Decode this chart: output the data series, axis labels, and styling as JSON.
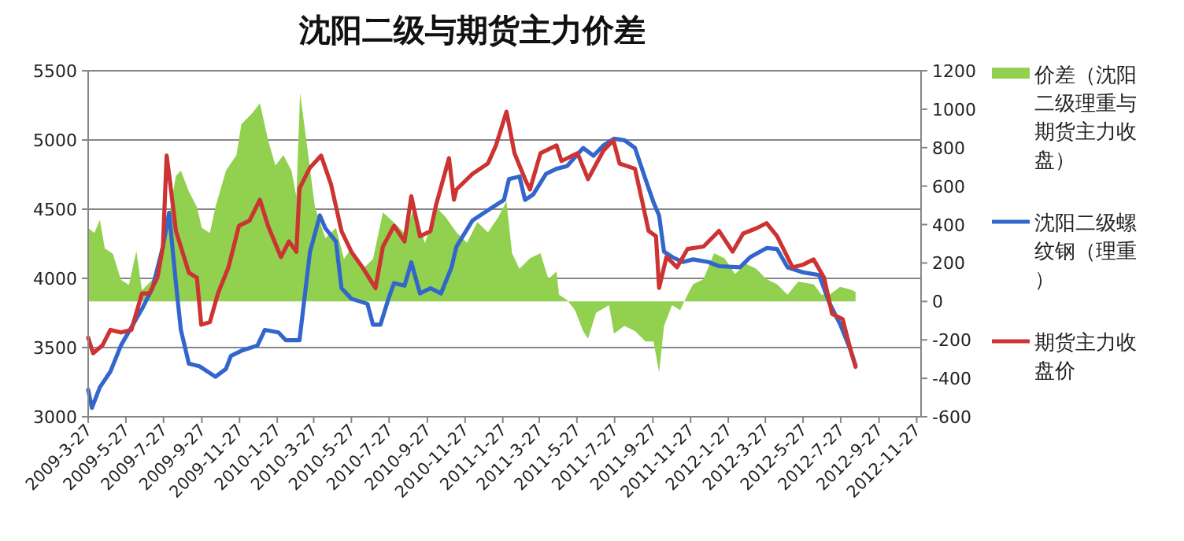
{
  "chart_data": {
    "type": "line",
    "title": "沈阳二级与期货主力价差",
    "legend": "right",
    "grid": "y",
    "xlim": [
      "2009-03-27",
      "2012-12-04"
    ],
    "xticks": [
      {
        "value": "2009-03-27",
        "label": "2009-3-27"
      },
      {
        "value": "2009-05-27",
        "label": "2009-5-27"
      },
      {
        "value": "2009-07-27",
        "label": "2009-7-27"
      },
      {
        "value": "2009-09-27",
        "label": "2009-9-27"
      },
      {
        "value": "2009-11-27",
        "label": "2009-11-27"
      },
      {
        "value": "2010-01-27",
        "label": "2010-1-27"
      },
      {
        "value": "2010-03-27",
        "label": "2010-3-27"
      },
      {
        "value": "2010-05-27",
        "label": "2010-5-27"
      },
      {
        "value": "2010-07-27",
        "label": "2010-7-27"
      },
      {
        "value": "2010-09-27",
        "label": "2010-9-27"
      },
      {
        "value": "2010-11-27",
        "label": "2010-11-27"
      },
      {
        "value": "2011-01-27",
        "label": "2011-1-27"
      },
      {
        "value": "2011-03-27",
        "label": "2011-3-27"
      },
      {
        "value": "2011-05-27",
        "label": "2011-5-27"
      },
      {
        "value": "2011-07-27",
        "label": "2011-7-27"
      },
      {
        "value": "2011-09-27",
        "label": "2011-9-27"
      },
      {
        "value": "2011-11-27",
        "label": "2011-11-27"
      },
      {
        "value": "2012-01-27",
        "label": "2012-1-27"
      },
      {
        "value": "2012-03-27",
        "label": "2012-3-27"
      },
      {
        "value": "2012-05-27",
        "label": "2012-5-27"
      },
      {
        "value": "2012-07-27",
        "label": "2012-7-27"
      },
      {
        "value": "2012-09-27",
        "label": "2012-9-27"
      },
      {
        "value": "2012-11-27",
        "label": "2012-11-27"
      }
    ],
    "ylim": [
      3000,
      5500
    ],
    "yticks": [
      3000,
      3500,
      4000,
      4500,
      5000,
      5500
    ],
    "y2lim": [
      -600,
      1200
    ],
    "y2ticks": [
      -600,
      -400,
      -200,
      0,
      200,
      400,
      600,
      800,
      1000,
      1200
    ],
    "series": [
      {
        "name": "价差（沈阳二级理重与期货主力收盘）",
        "type": "area",
        "axis": "y2",
        "color": "#92d050",
        "x": [
          "2009-03-27",
          "2009-04-06",
          "2009-04-15",
          "2009-04-23",
          "2009-05-06",
          "2009-05-19",
          "2009-06-01",
          "2009-06-13",
          "2009-06-22",
          "2009-07-09",
          "2009-07-21",
          "2009-08-03",
          "2009-08-16",
          "2009-08-24",
          "2009-09-06",
          "2009-09-19",
          "2009-09-27",
          "2009-10-10",
          "2009-10-19",
          "2009-11-05",
          "2009-11-22",
          "2009-11-30",
          "2009-12-17",
          "2009-12-30",
          "2010-01-12",
          "2010-01-24",
          "2010-02-06",
          "2010-02-19",
          "2010-02-27",
          "2010-03-05",
          "2010-03-16",
          "2010-03-29",
          "2010-04-15",
          "2010-05-02",
          "2010-05-15",
          "2010-05-27",
          "2010-06-14",
          "2010-07-01",
          "2010-07-17",
          "2010-08-04",
          "2010-08-21",
          "2010-09-06",
          "2010-09-23",
          "2010-10-11",
          "2010-10-27",
          "2010-11-13",
          "2010-11-30",
          "2010-12-17",
          "2011-01-03",
          "2011-01-20",
          "2011-02-02",
          "2011-02-11",
          "2011-02-23",
          "2011-03-12",
          "2011-03-29",
          "2011-04-11",
          "2011-04-24",
          "2011-04-28",
          "2011-05-11",
          "2011-05-24",
          "2011-06-06",
          "2011-06-14",
          "2011-06-27",
          "2011-07-18",
          "2011-07-26",
          "2011-08-12",
          "2011-08-29",
          "2011-09-15",
          "2011-09-28",
          "2011-10-07",
          "2011-10-15",
          "2011-10-28",
          "2011-11-10",
          "2011-11-22",
          "2011-12-01",
          "2011-12-18",
          "2012-01-04",
          "2012-01-21",
          "2012-02-07",
          "2012-02-24",
          "2012-03-12",
          "2012-03-29",
          "2012-04-15",
          "2012-05-02",
          "2012-05-19",
          "2012-06-13",
          "2012-06-26",
          "2012-07-09",
          "2012-07-26",
          "2012-08-12",
          "2012-08-20"
        ],
        "values": [
          383,
          356,
          424,
          275,
          248,
          113,
          86,
          262,
          59,
          113,
          167,
          410,
          653,
          680,
          572,
          491,
          383,
          356,
          491,
          680,
          761,
          923,
          977,
          1031,
          842,
          707,
          761,
          680,
          545,
          1085,
          815,
          491,
          329,
          383,
          221,
          275,
          167,
          221,
          464,
          410,
          356,
          491,
          302,
          491,
          437,
          359,
          305,
          413,
          359,
          440,
          521,
          251,
          170,
          224,
          251,
          116,
          157,
          35,
          8,
          -46,
          -154,
          -194,
          -59,
          -19,
          -167,
          -127,
          -154,
          -208,
          -208,
          -370,
          -127,
          -19,
          -46,
          35,
          89,
          116,
          251,
          224,
          143,
          197,
          170,
          116,
          89,
          35,
          103,
          89,
          35,
          35,
          76,
          62,
          49
        ]
      },
      {
        "name": "沈阳二级螺纹钢（理重）",
        "type": "line",
        "color": "#3366cc",
        "x": [
          "2009-03-27",
          "2009-04-02",
          "2009-04-15",
          "2009-05-02",
          "2009-05-19",
          "2009-06-05",
          "2009-06-22",
          "2009-07-09",
          "2009-07-26",
          "2009-08-05",
          "2009-08-16",
          "2009-08-24",
          "2009-09-06",
          "2009-09-23",
          "2009-10-19",
          "2009-11-05",
          "2009-11-13",
          "2009-11-30",
          "2009-12-26",
          "2010-01-07",
          "2010-01-29",
          "2010-02-10",
          "2010-03-04",
          "2010-03-12",
          "2010-03-21",
          "2010-04-06",
          "2010-04-15",
          "2010-05-02",
          "2010-05-11",
          "2010-05-27",
          "2010-06-22",
          "2010-07-01",
          "2010-07-13",
          "2010-07-26",
          "2010-08-04",
          "2010-08-21",
          "2010-09-01",
          "2010-09-15",
          "2010-10-02",
          "2010-10-19",
          "2010-11-05",
          "2010-11-13",
          "2010-12-09",
          "2011-01-03",
          "2011-01-29",
          "2011-02-06",
          "2011-02-23",
          "2011-03-04",
          "2011-03-17",
          "2011-04-07",
          "2011-04-24",
          "2011-05-11",
          "2011-06-06",
          "2011-06-23",
          "2011-07-09",
          "2011-07-26",
          "2011-08-12",
          "2011-08-29",
          "2011-09-15",
          "2011-09-28",
          "2011-10-07",
          "2011-10-15",
          "2011-10-28",
          "2011-11-14",
          "2011-12-01",
          "2011-12-26",
          "2012-01-12",
          "2012-02-15",
          "2012-03-03",
          "2012-03-29",
          "2012-04-15",
          "2012-05-02",
          "2012-05-27",
          "2012-06-22",
          "2012-07-09",
          "2012-07-26",
          "2012-08-12",
          "2012-08-20"
        ],
        "values": [
          3195,
          3064,
          3214,
          3327,
          3515,
          3647,
          3778,
          3929,
          4229,
          4474,
          3966,
          3628,
          3383,
          3365,
          3289,
          3346,
          3440,
          3477,
          3515,
          3628,
          3609,
          3553,
          3553,
          3853,
          4192,
          4455,
          4361,
          4267,
          3929,
          3853,
          3816,
          3665,
          3665,
          3853,
          3966,
          3947,
          4116,
          3891,
          3929,
          3891,
          4079,
          4230,
          4418,
          4492,
          4567,
          4717,
          4736,
          4567,
          4605,
          4755,
          4792,
          4811,
          4942,
          4886,
          4961,
          5009,
          4998,
          4942,
          4717,
          4549,
          4455,
          4193,
          4155,
          4118,
          4137,
          4118,
          4088,
          4080,
          4155,
          4219,
          4212,
          4080,
          4043,
          4024,
          3818,
          3669,
          3481,
          3369
        ]
      },
      {
        "name": "期货主力收盘价",
        "type": "line",
        "color": "#cc3333",
        "x": [
          "2009-03-27",
          "2009-04-04",
          "2009-04-19",
          "2009-05-02",
          "2009-05-19",
          "2009-06-05",
          "2009-06-22",
          "2009-07-04",
          "2009-07-17",
          "2009-07-26",
          "2009-08-01",
          "2009-08-07",
          "2009-08-16",
          "2009-08-24",
          "2009-09-06",
          "2009-09-19",
          "2009-09-26",
          "2009-10-10",
          "2009-10-23",
          "2009-11-09",
          "2009-11-26",
          "2009-12-13",
          "2009-12-30",
          "2010-01-12",
          "2010-02-02",
          "2010-02-15",
          "2010-02-27",
          "2010-03-04",
          "2010-03-21",
          "2010-04-08",
          "2010-04-24",
          "2010-05-11",
          "2010-05-27",
          "2010-06-14",
          "2010-07-05",
          "2010-07-17",
          "2010-08-04",
          "2010-08-21",
          "2010-09-01",
          "2010-09-15",
          "2010-10-02",
          "2010-10-11",
          "2010-11-01",
          "2010-11-09",
          "2010-11-13",
          "2010-12-09",
          "2011-01-03",
          "2011-01-16",
          "2011-02-02",
          "2011-02-15",
          "2011-03-04",
          "2011-03-12",
          "2011-03-29",
          "2011-04-24",
          "2011-05-02",
          "2011-05-28",
          "2011-06-14",
          "2011-07-09",
          "2011-07-25",
          "2011-08-04",
          "2011-08-29",
          "2011-09-11",
          "2011-09-20",
          "2011-10-02",
          "2011-10-07",
          "2011-10-19",
          "2011-11-05",
          "2011-11-22",
          "2011-12-18",
          "2012-01-12",
          "2012-02-03",
          "2012-02-20",
          "2012-03-12",
          "2012-03-29",
          "2012-04-15",
          "2012-05-10",
          "2012-05-27",
          "2012-06-13",
          "2012-06-30",
          "2012-07-13",
          "2012-07-30",
          "2012-08-12",
          "2012-08-20"
        ],
        "values": [
          3571,
          3459,
          3515,
          3628,
          3609,
          3628,
          3891,
          3891,
          4004,
          4229,
          4887,
          4680,
          4342,
          4229,
          4041,
          4004,
          3665,
          3684,
          3891,
          4079,
          4380,
          4417,
          4568,
          4380,
          4154,
          4267,
          4192,
          4650,
          4800,
          4887,
          4680,
          4342,
          4192,
          4079,
          3929,
          4229,
          4380,
          4267,
          4593,
          4304,
          4342,
          4530,
          4868,
          4568,
          4642,
          4755,
          4830,
          4961,
          5204,
          4904,
          4717,
          4642,
          4904,
          4961,
          4848,
          4904,
          4717,
          4923,
          4998,
          4830,
          4792,
          4530,
          4343,
          4305,
          3931,
          4155,
          4080,
          4212,
          4230,
          4343,
          4193,
          4324,
          4361,
          4399,
          4305,
          4080,
          4099,
          4137,
          4006,
          3743,
          3706,
          3481,
          3361
        ]
      }
    ]
  }
}
